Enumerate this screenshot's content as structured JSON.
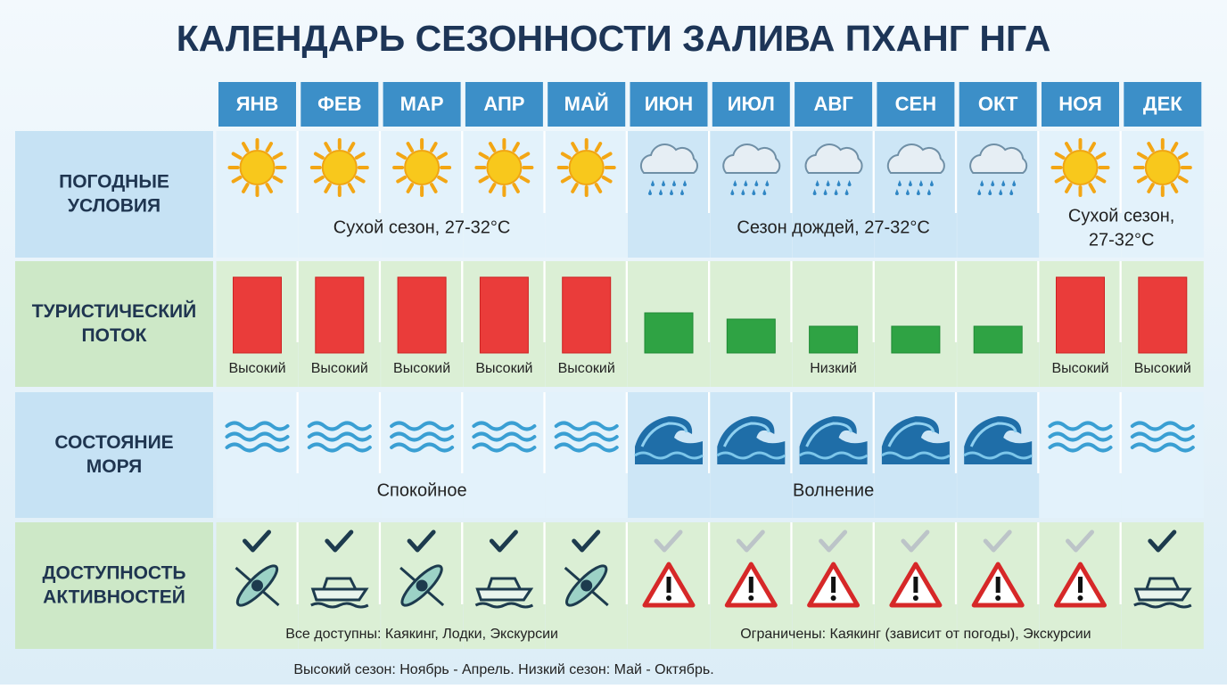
{
  "title": "КАЛЕНДАРЬ СЕЗОННОСТИ ЗАЛИВА ПХАНГ НГА",
  "months": [
    "ЯНВ",
    "ФЕВ",
    "МАР",
    "АПР",
    "МАЙ",
    "ИЮН",
    "ИЮЛ",
    "АВГ",
    "СЕН",
    "ОКТ",
    "НОЯ",
    "ДЕК"
  ],
  "rows": {
    "weather": {
      "label": [
        "ПОГОДНЫЕ",
        "УСЛОВИЯ"
      ],
      "notes": [
        "Сухой сезон, 27-32°C",
        "Сезон дождей, 27-32°C",
        [
          "Сухой сезон,",
          "27-32°C"
        ]
      ]
    },
    "tourists": {
      "label": [
        "ТУРИСТИЧЕСКИЙ",
        "ПОТОК"
      ],
      "notes": [
        "Высокий",
        "Высокий",
        "Высокий",
        "Высокий",
        "Высокий",
        "Низкий",
        "Высокий",
        "Высокий"
      ]
    },
    "sea": {
      "label": [
        "СОСТОЯНИЕ",
        "МОРЯ"
      ],
      "notes": [
        "Спокойное",
        "Волнение"
      ]
    },
    "activities": {
      "label": [
        "ДОСТУПНОСТЬ",
        "АКТИВНОСТЕЙ"
      ],
      "notes": [
        "Все доступны: Каякинг, Лодки, Экскурсии",
        "Ограничены: Каякинг (зависит от погоды), Экскурсии"
      ]
    }
  },
  "footer": "Высокий сезон: Ноябрь - Апрель. Низкий сезон: Май - Октябрь."
}
